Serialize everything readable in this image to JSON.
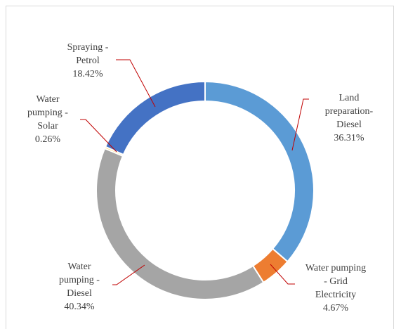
{
  "chart_data": {
    "type": "donut",
    "categories": [
      "Land preparation-Diesel",
      "Water pumping - Grid Electricity",
      "Water pumping - Diesel",
      "Water pumping - Solar",
      "Spraying - Petrol"
    ],
    "values": [
      36.31,
      4.67,
      40.34,
      0.26,
      18.42
    ],
    "value_labels": [
      "36.31%",
      "4.67%",
      "40.34%",
      "0.26%",
      "18.42%"
    ],
    "colors": [
      "#5b9bd5",
      "#ed7d31",
      "#a5a5a5",
      "#ffc000",
      "#4472c4"
    ]
  }
}
